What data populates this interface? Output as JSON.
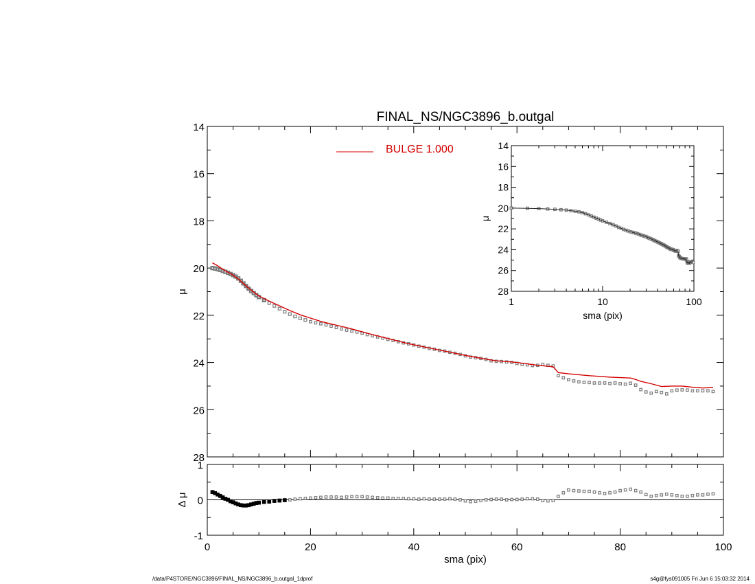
{
  "footer": {
    "path": "/data/P4STORE/NGC3896/FINAL_NS/NGC3896_b.outgal_1dprof",
    "stamp": "s4g@fys091005  Fri Jun  6 15:03:32 2014"
  },
  "colors": {
    "model": "#d40000",
    "data": "#7a7a7a",
    "axis": "#000000"
  },
  "chart_data": [
    {
      "id": "main",
      "type": "scatter",
      "title": "FINAL_NS/NGC3896_b.outgal",
      "xlabel": "sma (pix)",
      "ylabel": "μ",
      "xlim": [
        0,
        100
      ],
      "ylim": [
        28,
        14
      ],
      "xticks": [
        "0",
        "20",
        "40",
        "60",
        "80",
        "100"
      ],
      "yticks": [
        "14",
        "16",
        "18",
        "20",
        "22",
        "24",
        "26",
        "28"
      ],
      "legend": {
        "label": "BULGE  1.000",
        "placement": "top-center"
      },
      "series": [
        {
          "kind": "points",
          "x": [
            1,
            1.5,
            2,
            2.5,
            3,
            3.5,
            4,
            4.5,
            5,
            5.5,
            6,
            6.5,
            7,
            7.5,
            8,
            8.5,
            9,
            9.5,
            10,
            11,
            12,
            13,
            14,
            15,
            16,
            17,
            18,
            19,
            20,
            21,
            22,
            23,
            24,
            25,
            26,
            27,
            28,
            29,
            30,
            31,
            32,
            33,
            34,
            35,
            36,
            37,
            38,
            39,
            40,
            41,
            42,
            43,
            44,
            45,
            46,
            47,
            48,
            49,
            50,
            51,
            52,
            53,
            54,
            55,
            56,
            57,
            58,
            59,
            60,
            61,
            62,
            63,
            64,
            65,
            66,
            67,
            68,
            69,
            70,
            71,
            72,
            73,
            74,
            75,
            76,
            77,
            78,
            79,
            80,
            81,
            82,
            83,
            84,
            85,
            86,
            87,
            88,
            89,
            90,
            91,
            92,
            93,
            94,
            95,
            96,
            97,
            98
          ],
          "y": [
            20.0,
            20.02,
            20.05,
            20.08,
            20.12,
            20.16,
            20.2,
            20.25,
            20.3,
            20.36,
            20.44,
            20.54,
            20.65,
            20.76,
            20.87,
            20.97,
            21.06,
            21.15,
            21.23,
            21.36,
            21.48,
            21.6,
            21.72,
            21.85,
            21.95,
            22.05,
            22.13,
            22.2,
            22.27,
            22.32,
            22.36,
            22.41,
            22.46,
            22.52,
            22.58,
            22.63,
            22.67,
            22.71,
            22.76,
            22.82,
            22.87,
            22.92,
            22.97,
            23.02,
            23.07,
            23.12,
            23.17,
            23.21,
            23.26,
            23.31,
            23.35,
            23.4,
            23.44,
            23.49,
            23.52,
            23.57,
            23.61,
            23.66,
            23.72,
            23.77,
            23.8,
            23.83,
            23.87,
            23.93,
            23.95,
            23.96,
            23.98,
            24.0,
            24.04,
            24.08,
            24.1,
            24.13,
            24.12,
            24.08,
            24.12,
            24.15,
            24.56,
            24.65,
            24.73,
            24.78,
            24.82,
            24.84,
            24.85,
            24.87,
            24.87,
            24.87,
            24.89,
            24.87,
            24.9,
            24.92,
            24.88,
            24.96,
            25.15,
            25.25,
            25.3,
            25.23,
            25.27,
            25.33,
            25.2,
            25.17,
            25.16,
            25.17,
            25.2,
            25.2,
            25.2,
            25.2,
            25.23
          ]
        },
        {
          "kind": "line",
          "name": "BULGE  1.000",
          "x": [
            1,
            2,
            3,
            4,
            5,
            6,
            7,
            8,
            9,
            10,
            12,
            14,
            16,
            18,
            20,
            22,
            24,
            26,
            28,
            30,
            32,
            34,
            36,
            38,
            40,
            42,
            44,
            46,
            48,
            50,
            52,
            54,
            56,
            58,
            60,
            62,
            64,
            66,
            67,
            67.5,
            68,
            70,
            72,
            74,
            76,
            78,
            80,
            82,
            83,
            84,
            86,
            88,
            90,
            92,
            94,
            96,
            98
          ],
          "y": [
            19.78,
            19.9,
            20.05,
            20.18,
            20.3,
            20.46,
            20.66,
            20.85,
            21.02,
            21.18,
            21.4,
            21.6,
            21.8,
            21.98,
            22.12,
            22.26,
            22.37,
            22.47,
            22.58,
            22.7,
            22.82,
            22.93,
            23.04,
            23.15,
            23.25,
            23.34,
            23.43,
            23.52,
            23.61,
            23.7,
            23.78,
            23.86,
            23.93,
            23.96,
            24.0,
            24.06,
            24.12,
            24.16,
            24.18,
            24.3,
            24.43,
            24.48,
            24.52,
            24.56,
            24.59,
            24.62,
            24.64,
            24.66,
            24.72,
            24.8,
            24.9,
            25.02,
            25.0,
            25.0,
            25.05,
            25.08,
            25.06
          ]
        }
      ]
    },
    {
      "id": "inset",
      "type": "scatter",
      "xlabel": "sma (pix)",
      "ylabel": "μ",
      "xscale": "log",
      "xlim": [
        1,
        100
      ],
      "ylim": [
        28,
        14
      ],
      "xticks": [
        "1",
        "10",
        "100"
      ],
      "yticks": [
        "14",
        "16",
        "18",
        "20",
        "22",
        "24",
        "26",
        "28"
      ]
    },
    {
      "id": "residual",
      "type": "scatter",
      "xlabel": "sma (pix)",
      "ylabel": "Δ μ",
      "xlim": [
        0,
        100
      ],
      "ylim": [
        -1,
        1
      ],
      "yticks": [
        "1",
        "0",
        "-1"
      ],
      "series": [
        {
          "kind": "points",
          "x": [
            1,
            1.5,
            2,
            2.5,
            3,
            3.5,
            4,
            4.5,
            5,
            5.5,
            6,
            6.5,
            7,
            7.5,
            8,
            8.5,
            9,
            9.5,
            10,
            11,
            12,
            13,
            14,
            15,
            16,
            17,
            18,
            19,
            20,
            21,
            22,
            23,
            24,
            25,
            26,
            27,
            28,
            29,
            30,
            31,
            32,
            33,
            34,
            35,
            36,
            37,
            38,
            39,
            40,
            41,
            42,
            43,
            44,
            45,
            46,
            47,
            48,
            49,
            50,
            51,
            52,
            53,
            54,
            55,
            56,
            57,
            58,
            59,
            60,
            61,
            62,
            63,
            64,
            65,
            66,
            67,
            68,
            69,
            70,
            71,
            72,
            73,
            74,
            75,
            76,
            77,
            78,
            79,
            80,
            81,
            82,
            83,
            84,
            85,
            86,
            87,
            88,
            89,
            90,
            91,
            92,
            93,
            94,
            95,
            96,
            97,
            98
          ],
          "y": [
            0.22,
            0.19,
            0.15,
            0.11,
            0.07,
            0.03,
            0.0,
            -0.04,
            -0.07,
            -0.1,
            -0.13,
            -0.15,
            -0.16,
            -0.16,
            -0.15,
            -0.13,
            -0.11,
            -0.09,
            -0.08,
            -0.06,
            -0.05,
            -0.03,
            -0.02,
            -0.01,
            0.0,
            0.02,
            0.03,
            0.04,
            0.05,
            0.06,
            0.07,
            0.08,
            0.08,
            0.08,
            0.07,
            0.08,
            0.09,
            0.09,
            0.09,
            0.08,
            0.07,
            0.06,
            0.05,
            0.05,
            0.04,
            0.04,
            0.04,
            0.03,
            0.03,
            0.02,
            0.03,
            0.02,
            0.02,
            0.02,
            0.02,
            0.03,
            0.02,
            0.0,
            -0.03,
            -0.05,
            -0.04,
            -0.02,
            0.0,
            0.01,
            0.02,
            0.02,
            0.0,
            0.01,
            0.01,
            0.02,
            0.03,
            0.03,
            0.02,
            -0.02,
            -0.03,
            -0.02,
            0.1,
            0.2,
            0.28,
            0.26,
            0.25,
            0.24,
            0.24,
            0.22,
            0.2,
            0.18,
            0.2,
            0.22,
            0.26,
            0.28,
            0.3,
            0.26,
            0.22,
            0.15,
            0.1,
            0.12,
            0.14,
            0.16,
            0.14,
            0.12,
            0.1,
            0.1,
            0.12,
            0.14,
            0.14,
            0.16,
            0.17
          ]
        }
      ]
    }
  ]
}
